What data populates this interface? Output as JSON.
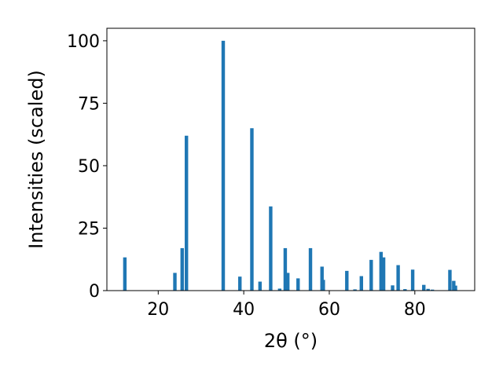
{
  "chart_data": {
    "type": "bar",
    "xlabel": "2θ (°)",
    "ylabel": "Intensities (scaled)",
    "xlim": [
      8,
      94
    ],
    "ylim": [
      0,
      105
    ],
    "xticks": [
      20,
      40,
      60,
      80
    ],
    "yticks": [
      0,
      25,
      50,
      75,
      100
    ],
    "bar_color": "#1f77b4",
    "x": [
      12.2,
      23.9,
      25.6,
      26.6,
      35.2,
      39.1,
      41.9,
      43.8,
      46.3,
      48.4,
      49.7,
      50.3,
      52.7,
      55.6,
      58.3,
      58.6,
      64.1,
      66.0,
      67.5,
      69.8,
      72.1,
      72.7,
      74.8,
      76.1,
      77.7,
      79.5,
      82.1,
      83.1,
      84.1,
      88.2,
      89.1,
      89.5
    ],
    "values": [
      13.3,
      7.1,
      17.0,
      62.0,
      100,
      5.6,
      65.0,
      3.6,
      33.7,
      0.8,
      17.0,
      7.1,
      4.9,
      17.0,
      9.6,
      4.3,
      7.9,
      0.5,
      5.8,
      12.3,
      15.5,
      13.3,
      2.1,
      10.2,
      0.6,
      8.4,
      2.3,
      0.7,
      0.4,
      8.3,
      3.9,
      2.0
    ]
  }
}
